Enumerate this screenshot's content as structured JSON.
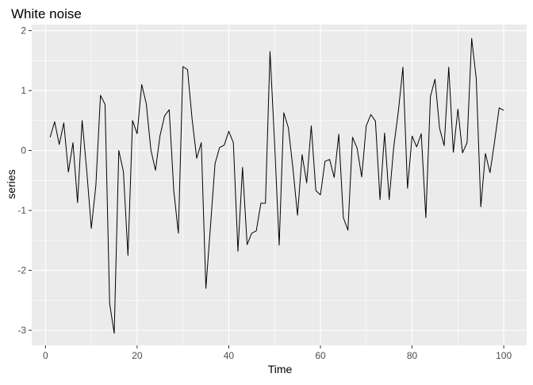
{
  "chart_data": {
    "type": "line",
    "title": "White noise",
    "xlabel": "Time",
    "ylabel": "series",
    "xlim": [
      -3,
      105
    ],
    "ylim": [
      -3.25,
      2.1
    ],
    "x_ticks": [
      0,
      20,
      40,
      60,
      80,
      100
    ],
    "x_tick_labels": [
      "0",
      "20",
      "40",
      "60",
      "80",
      "100"
    ],
    "y_ticks": [
      -3,
      -2,
      -1,
      0,
      1,
      2
    ],
    "y_tick_labels": [
      "-3",
      "-2",
      "-1",
      "0",
      "1",
      "2"
    ],
    "grid": true,
    "panel_background": "#ebebeb",
    "grid_color": "#ffffff",
    "line_color": "#000000",
    "series": [
      {
        "x": [
          1,
          2,
          3,
          4,
          5,
          6,
          7,
          8,
          9,
          10,
          11,
          12,
          13,
          14,
          15,
          16,
          17,
          18,
          19,
          20,
          21,
          22,
          23,
          24,
          25,
          26,
          27,
          28,
          29,
          30,
          31,
          32,
          33,
          34,
          35,
          36,
          37,
          38,
          39,
          40,
          41,
          42,
          43,
          44,
          45,
          46,
          47,
          48,
          49,
          50,
          51,
          52,
          53,
          54,
          55,
          56,
          57,
          58,
          59,
          60,
          61,
          62,
          63,
          64,
          65,
          66,
          67,
          68,
          69,
          70,
          71,
          72,
          73,
          74,
          75,
          76,
          77,
          78,
          79,
          80,
          81,
          82,
          83,
          84,
          85,
          86,
          87,
          88,
          89,
          90,
          91,
          92,
          93,
          94,
          95,
          96,
          97,
          98,
          99,
          100
        ],
        "values": [
          0.22,
          0.48,
          0.1,
          0.46,
          -0.36,
          0.13,
          -0.87,
          0.5,
          -0.33,
          -1.3,
          -0.58,
          0.92,
          0.77,
          -2.55,
          -3.05,
          0.0,
          -0.35,
          -1.75,
          0.5,
          0.28,
          1.1,
          0.78,
          0.01,
          -0.33,
          0.25,
          0.58,
          0.68,
          -0.67,
          -1.38,
          1.4,
          1.35,
          0.52,
          -0.13,
          0.13,
          -2.3,
          -1.27,
          -0.22,
          0.05,
          0.09,
          0.32,
          0.13,
          -1.68,
          -0.28,
          -1.57,
          -1.38,
          -1.34,
          -0.88,
          -0.88,
          1.65,
          0.12,
          -1.58,
          0.63,
          0.38,
          -0.3,
          -1.08,
          -0.07,
          -0.54,
          0.41,
          -0.67,
          -0.74,
          -0.18,
          -0.15,
          -0.45,
          0.27,
          -1.12,
          -1.33,
          0.22,
          0.04,
          -0.44,
          0.41,
          0.6,
          0.49,
          -0.82,
          0.29,
          -0.82,
          0.06,
          0.65,
          1.39,
          -0.63,
          0.24,
          0.06,
          0.28,
          -1.12,
          0.9,
          1.19,
          0.37,
          0.08,
          1.39,
          -0.03,
          0.69,
          -0.04,
          0.13,
          1.87,
          1.2,
          -0.94,
          -0.05,
          -0.37,
          0.15,
          0.71,
          0.67
        ]
      }
    ]
  }
}
